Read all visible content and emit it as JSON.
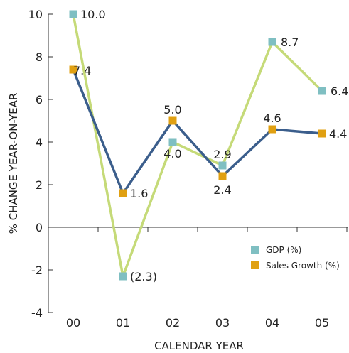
{
  "chart_data": {
    "type": "line",
    "title": "",
    "xlabel": "CALENDAR YEAR",
    "ylabel": "% CHANGE YEAR-ON-YEAR",
    "categories": [
      "00",
      "01",
      "02",
      "03",
      "04",
      "05"
    ],
    "ylim": [
      -4,
      10
    ],
    "yticks": [
      -4,
      -2,
      0,
      2,
      4,
      6,
      8,
      10
    ],
    "legend_position": "bottom-right",
    "grid": false,
    "series": [
      {
        "name": "GDP (%)",
        "values": [
          10.0,
          -2.3,
          4.0,
          2.9,
          8.7,
          6.4
        ],
        "labels": [
          "10.0",
          "(2.3)",
          "4.0",
          "2.9",
          "8.7",
          "6.4"
        ],
        "line_color": "#c5da78",
        "marker_color": "#7fbfc2"
      },
      {
        "name": "Sales Growth (%)",
        "values": [
          7.4,
          1.6,
          5.0,
          2.4,
          4.6,
          4.4
        ],
        "labels": [
          "7.4",
          "1.6",
          "5.0",
          "2.4",
          "4.6",
          "4.4"
        ],
        "line_color": "#3b5e8c",
        "marker_color": "#e0a012"
      }
    ]
  }
}
